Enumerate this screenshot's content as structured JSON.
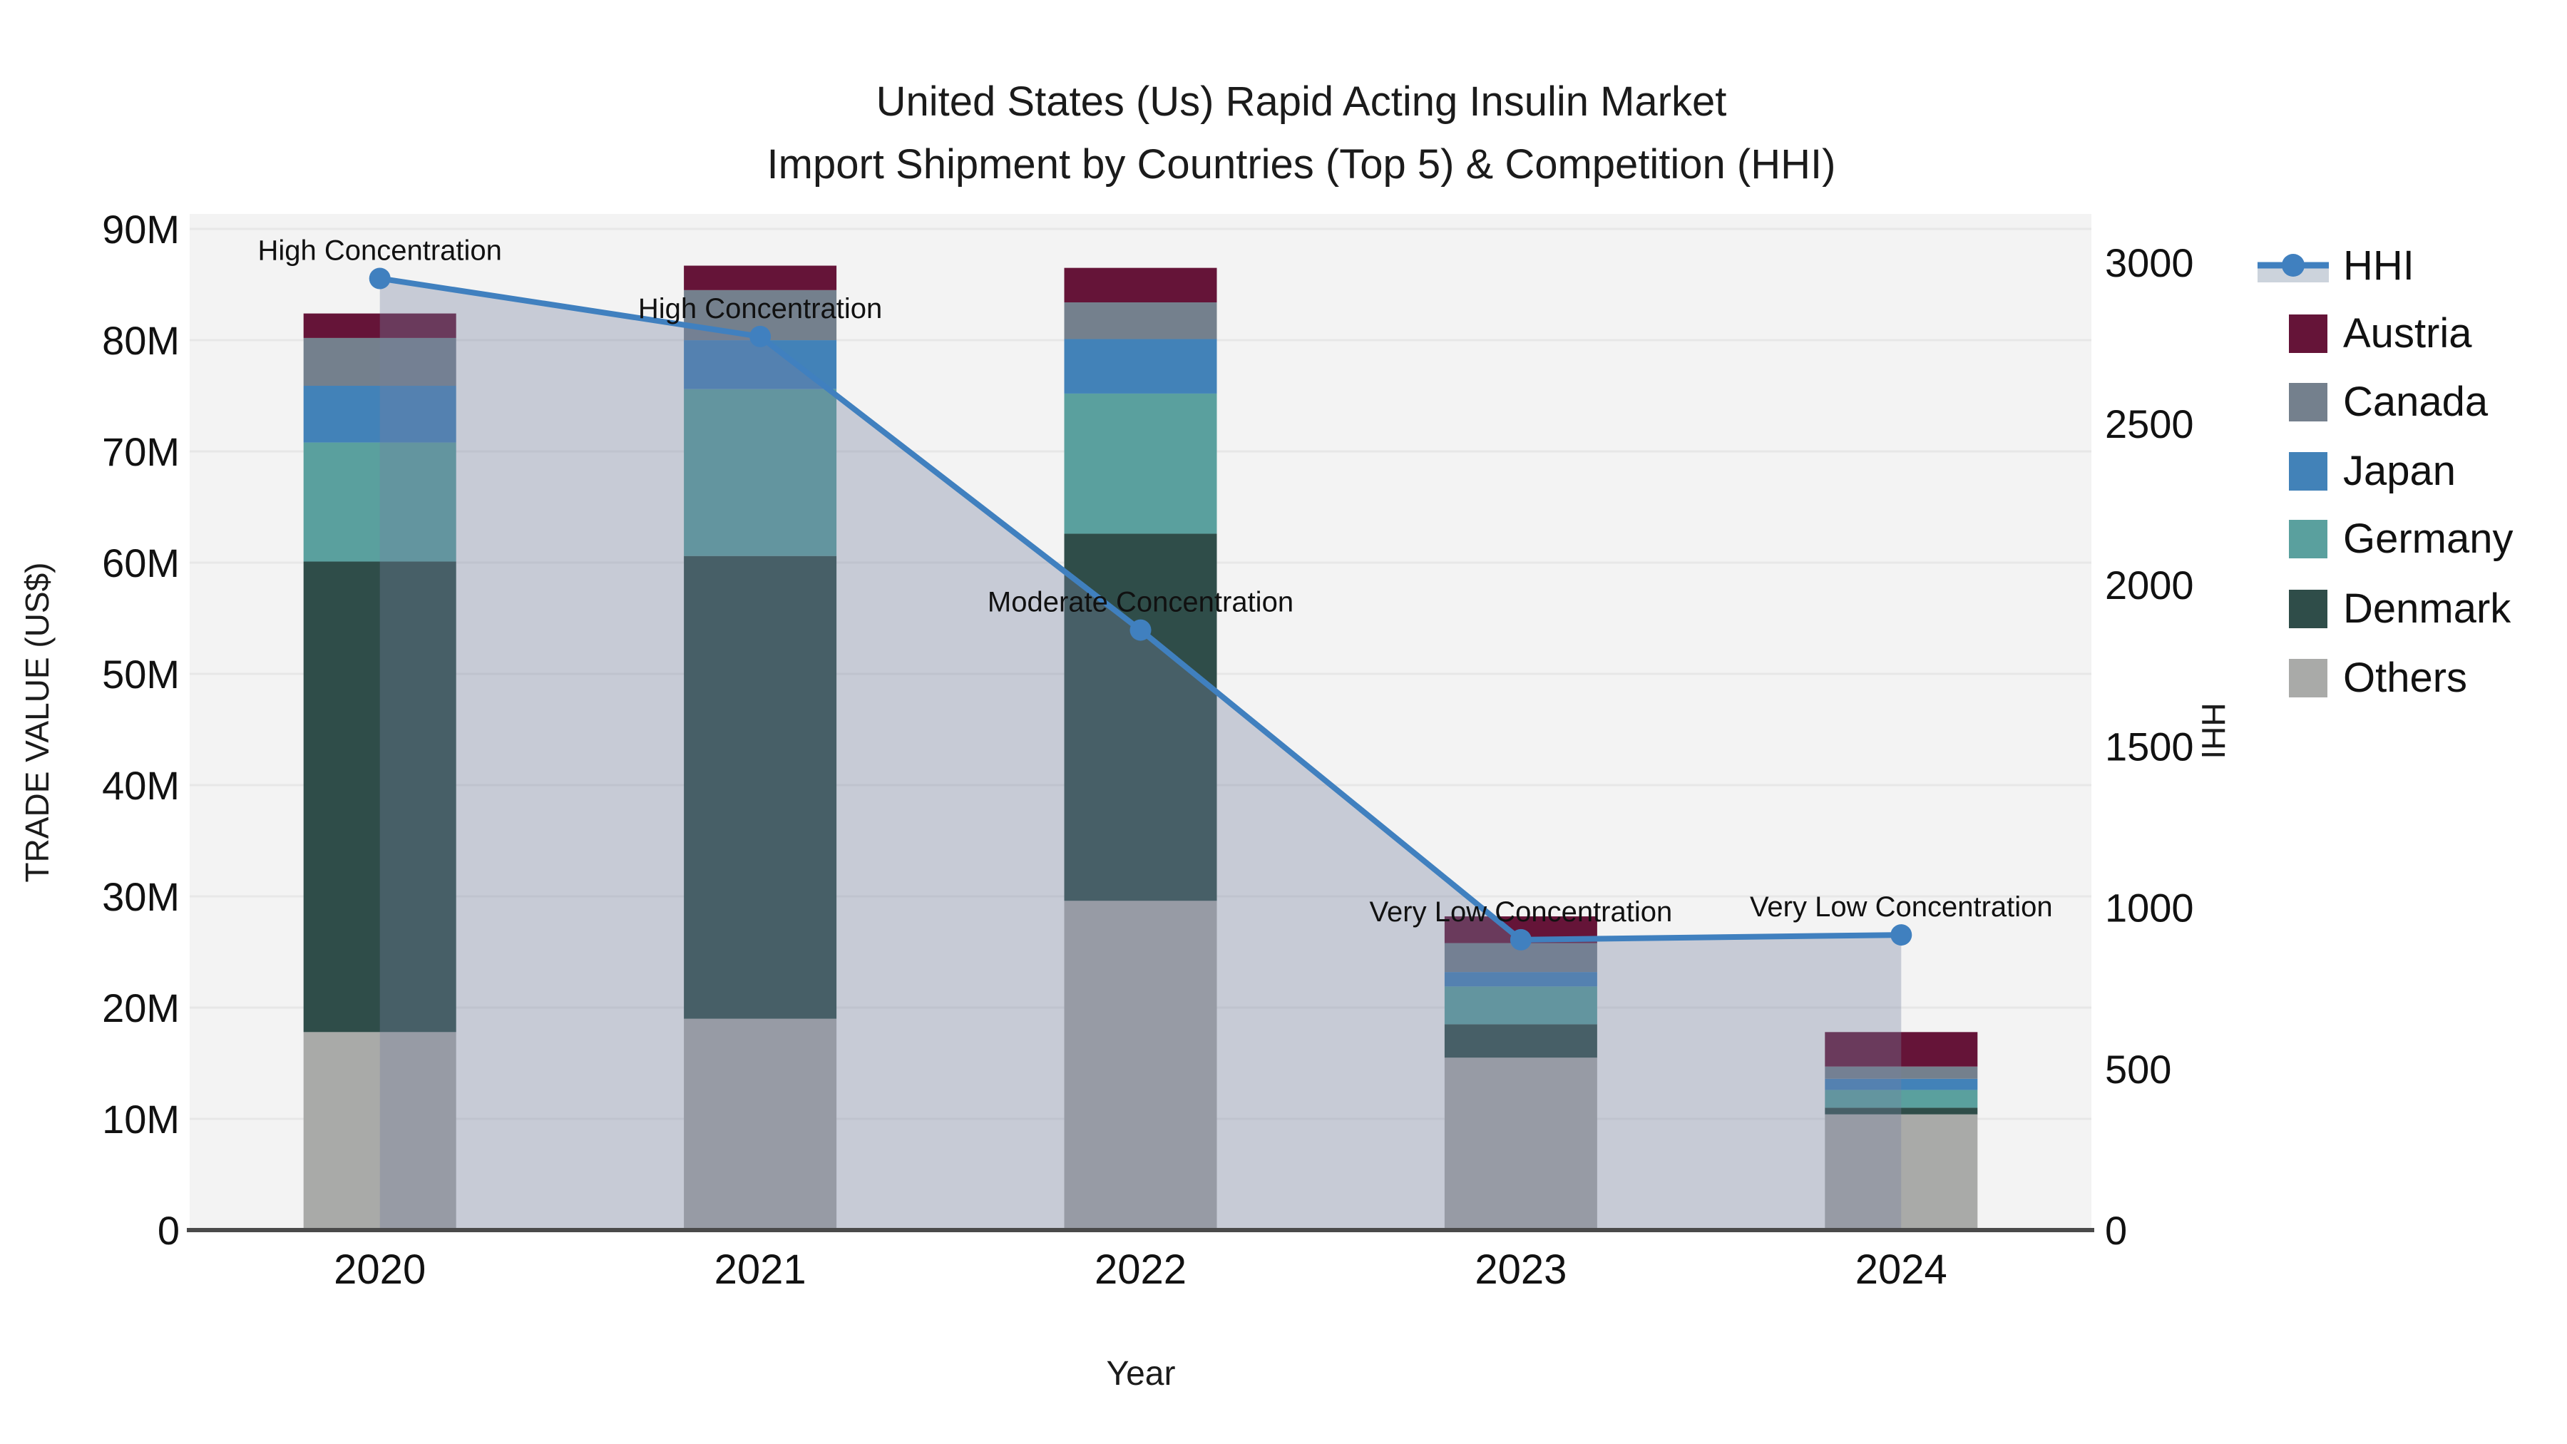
{
  "title": {
    "line1": "United States (Us) Rapid Acting Insulin Market",
    "line2": "Import Shipment by Countries (Top 5) & Competition (HHI)"
  },
  "axes": {
    "left": {
      "title": "TRADE VALUE (US$)",
      "tick_labels": [
        "0",
        "10M",
        "20M",
        "30M",
        "40M",
        "50M",
        "60M",
        "70M",
        "80M",
        "90M"
      ],
      "tick_values_millions": [
        0,
        10,
        20,
        30,
        40,
        50,
        60,
        70,
        80,
        90
      ],
      "max_millions": 91.35
    },
    "right": {
      "title": "HHI",
      "tick_labels": [
        "0",
        "500",
        "1000",
        "1500",
        "2000",
        "2500",
        "3000"
      ],
      "tick_values": [
        0,
        500,
        1000,
        1500,
        2000,
        2500,
        3000
      ],
      "max_value": 3150
    },
    "x": {
      "title": "Year",
      "categories": [
        "2020",
        "2021",
        "2022",
        "2023",
        "2024"
      ]
    }
  },
  "legend": {
    "items": [
      {
        "label": "HHI",
        "type": "line",
        "color": "#4080bf",
        "band_color": "#ccd3dc"
      },
      {
        "label": "Austria",
        "type": "square",
        "color": "#651438"
      },
      {
        "label": "Canada",
        "type": "square",
        "color": "#74808d"
      },
      {
        "label": "Japan",
        "type": "square",
        "color": "#4282b8"
      },
      {
        "label": "Germany",
        "type": "square",
        "color": "#5aa09e"
      },
      {
        "label": "Denmark",
        "type": "square",
        "color": "#2f4d49"
      },
      {
        "label": "Others",
        "type": "square",
        "color": "#a9aaa8"
      }
    ]
  },
  "annotations": [
    {
      "year": "2020",
      "text": "High Concentration"
    },
    {
      "year": "2021",
      "text": "High Concentration"
    },
    {
      "year": "2022",
      "text": "Moderate Concentration"
    },
    {
      "year": "2023",
      "text": "Very Low Concentration"
    },
    {
      "year": "2024",
      "text": "Very Low Concentration"
    }
  ],
  "colors": {
    "plot_background": "#f3f3f3",
    "gridline": "#e7e7e7",
    "axis_line": "#4a4a4a",
    "hhi_line": "#4080bf",
    "hhi_area_fill": "#7682a0",
    "hhi_area_opacity": 0.35,
    "text": "#1b1b1b"
  },
  "chart_data": {
    "type": [
      "bar",
      "line"
    ],
    "title": "United States (Us) Rapid Acting Insulin Market Import Shipment by Countries (Top 5) & Competition (HHI)",
    "xlabel": "Year",
    "ylabel": "TRADE VALUE (US$)",
    "y2label": "HHI",
    "categories": [
      "2020",
      "2021",
      "2022",
      "2023",
      "2024"
    ],
    "unit": "millions US$",
    "stack_order_bottom_to_top": [
      "Others",
      "Denmark",
      "Germany",
      "Japan",
      "Canada",
      "Austria"
    ],
    "series": [
      {
        "name": "Others",
        "color": "#a9aaa8",
        "values": [
          17.8,
          19.0,
          29.6,
          15.5,
          10.4
        ]
      },
      {
        "name": "Denmark",
        "color": "#2f4d49",
        "values": [
          42.3,
          41.6,
          33.0,
          3.0,
          0.6
        ]
      },
      {
        "name": "Germany",
        "color": "#5aa09e",
        "values": [
          10.7,
          15.0,
          12.6,
          3.4,
          1.6
        ]
      },
      {
        "name": "Japan",
        "color": "#4282b8",
        "values": [
          5.1,
          4.4,
          4.9,
          1.3,
          1.0
        ]
      },
      {
        "name": "Canada",
        "color": "#74808d",
        "values": [
          4.3,
          4.5,
          3.3,
          2.6,
          1.1
        ]
      },
      {
        "name": "Austria",
        "color": "#651438",
        "values": [
          2.2,
          2.2,
          3.1,
          2.4,
          3.1
        ]
      }
    ],
    "bar_totals_millions": [
      82.4,
      86.7,
      86.5,
      28.2,
      17.8
    ],
    "hhi_series": {
      "name": "HHI",
      "color": "#4080bf",
      "values": [
        2950,
        2770,
        1860,
        900,
        915
      ]
    },
    "ylim_millions": [
      0,
      91.35
    ],
    "y2lim": [
      0,
      3150
    ],
    "grid": "horizontal-10M",
    "legend_position": "right",
    "annotations": [
      "High Concentration",
      "High Concentration",
      "Moderate Concentration",
      "Very Low Concentration",
      "Very Low Concentration"
    ]
  }
}
